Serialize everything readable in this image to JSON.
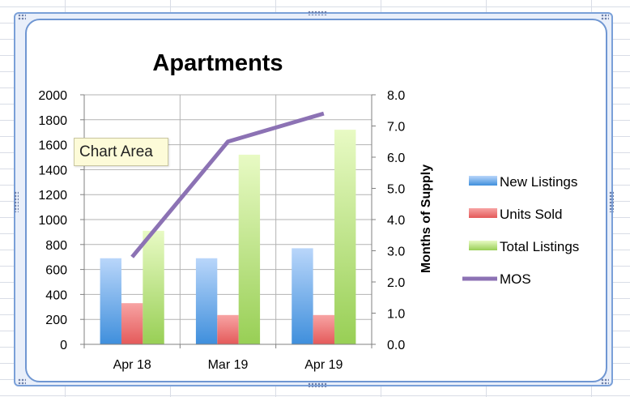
{
  "tooltip": "Chart Area",
  "chart_data": {
    "type": "bar",
    "title": "Apartments",
    "categories": [
      "Apr 18",
      "Mar 19",
      "Apr 19"
    ],
    "series": [
      {
        "name": "New Listings",
        "type": "bar",
        "axis": "left",
        "color": "#5b9bd5",
        "values": [
          690,
          690,
          770
        ]
      },
      {
        "name": "Units Sold",
        "type": "bar",
        "axis": "left",
        "color": "#e86a6a",
        "values": [
          330,
          235,
          235
        ]
      },
      {
        "name": "Total Listings",
        "type": "bar",
        "axis": "left",
        "color": "#a6d96a",
        "values": [
          910,
          1520,
          1720
        ]
      },
      {
        "name": "MOS",
        "type": "line",
        "axis": "right",
        "color": "#8c72b4",
        "values": [
          2.8,
          6.5,
          7.4
        ]
      }
    ],
    "ylim": [
      0,
      2000
    ],
    "y_ticks": [
      "0",
      "200",
      "400",
      "600",
      "800",
      "1000",
      "1200",
      "1400",
      "1600",
      "1800",
      "2000"
    ],
    "y2label": "Months of Supply",
    "y2lim": [
      0,
      8
    ],
    "y2_ticks": [
      "0.0",
      "1.0",
      "2.0",
      "3.0",
      "4.0",
      "5.0",
      "6.0",
      "7.0",
      "8.0"
    ],
    "grid": true,
    "legend_position": "right"
  }
}
